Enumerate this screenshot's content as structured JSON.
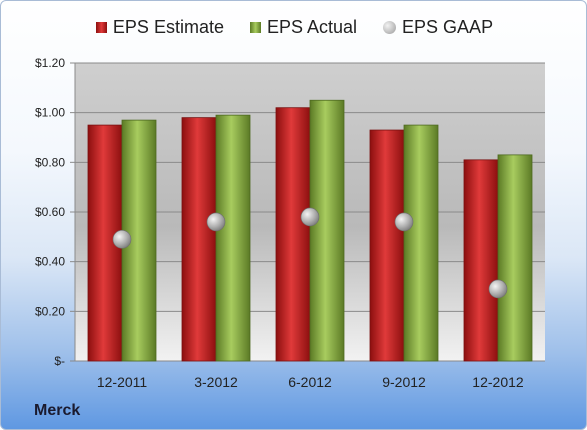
{
  "chart_data": {
    "type": "bar",
    "categories": [
      "12-2011",
      "3-2012",
      "6-2012",
      "9-2012",
      "12-2012"
    ],
    "series": [
      {
        "name": "EPS Estimate",
        "kind": "bar",
        "color": "#c42a2a",
        "values": [
          0.95,
          0.98,
          1.02,
          0.93,
          0.81
        ]
      },
      {
        "name": "EPS Actual",
        "kind": "bar",
        "color": "#8fb24a",
        "values": [
          0.97,
          0.99,
          1.05,
          0.95,
          0.83
        ]
      },
      {
        "name": "EPS GAAP",
        "kind": "marker",
        "color": "#a6a6a6",
        "values": [
          0.49,
          0.56,
          0.58,
          0.56,
          0.29
        ]
      }
    ],
    "ylim": [
      0,
      1.2
    ],
    "yticks": [
      0,
      0.2,
      0.4,
      0.6,
      0.8,
      1.0,
      1.2
    ],
    "ytick_labels": [
      "$-",
      "$0.20",
      "$0.40",
      "$0.60",
      "$0.80",
      "$1.00",
      "$1.20"
    ],
    "grid": true,
    "legend": "top"
  },
  "company_label": "Merck"
}
